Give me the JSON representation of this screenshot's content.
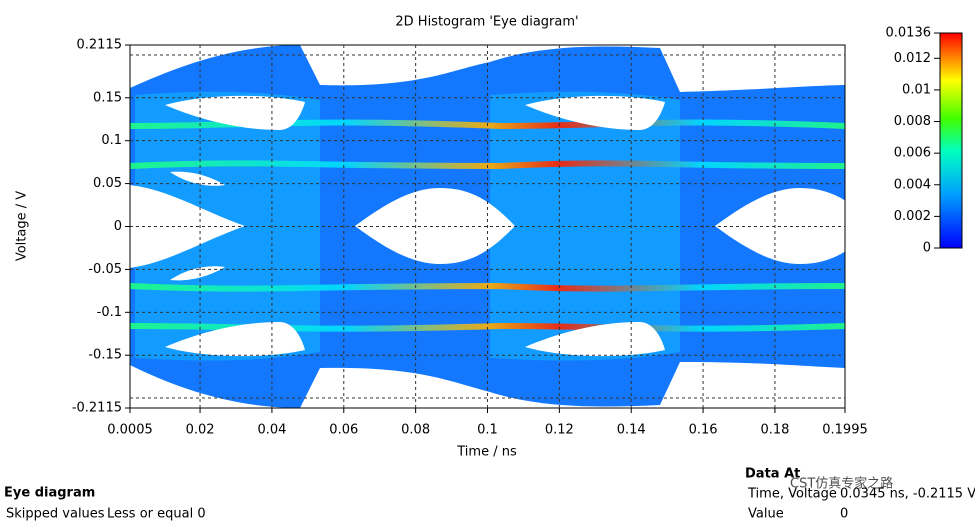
{
  "chart_data": {
    "type": "heatmap",
    "title": "2D Histogram 'Eye diagram'",
    "x_label": "Time / ns",
    "y_label": "Voltage / V",
    "xlim": [
      0.0005,
      0.1995
    ],
    "xticks": [
      0.0005,
      0.02,
      0.04,
      0.06,
      0.08,
      0.1,
      0.12,
      0.14,
      0.16,
      0.18,
      0.1995
    ],
    "ylim": [
      -0.2115,
      0.2115
    ],
    "yticks": [
      -0.2115,
      -0.15,
      -0.1,
      -0.05,
      0,
      0.05,
      0.1,
      0.15,
      0.2115
    ],
    "colorbar": {
      "lim": [
        0,
        0.0136
      ],
      "ticks": [
        0,
        0.002,
        0.004,
        0.006,
        0.008,
        0.01,
        0.012,
        0.0136
      ]
    },
    "grid": true
  },
  "footer": {
    "title": "Eye diagram",
    "skipped_label": "Skipped values",
    "skipped_value": "Less or equal 0",
    "data_at": "Data At",
    "coord_label": "Time, Voltage",
    "coord_value": "0.0345 ns, -0.2115 V",
    "value_label": "Value",
    "value": "0",
    "watermark": "CST仿真专家之路"
  }
}
